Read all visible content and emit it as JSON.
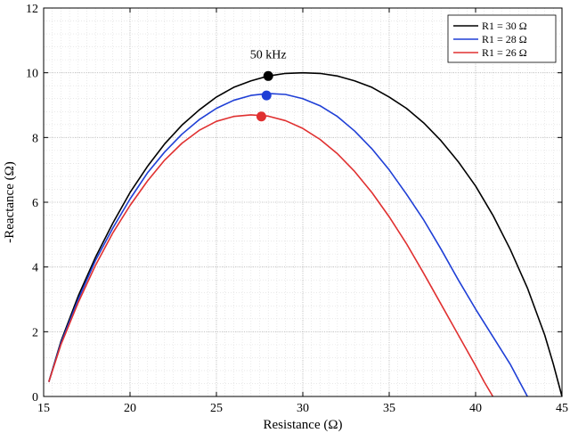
{
  "chart_data": {
    "type": "line",
    "title": "",
    "xlabel": "Resistance (Ω)",
    "ylabel": "-Reactance (Ω)",
    "xlim": [
      15,
      45
    ],
    "ylim": [
      0,
      12
    ],
    "x_ticks": [
      15,
      20,
      25,
      30,
      35,
      40,
      45
    ],
    "y_ticks": [
      0,
      2,
      4,
      6,
      8,
      10,
      12
    ],
    "grid": true,
    "legend_position": "top-right",
    "series": [
      {
        "name": "R1 = 30 Ω",
        "color": "#000000",
        "points": [
          [
            15.3,
            0.45
          ],
          [
            16,
            1.7
          ],
          [
            17,
            3.1
          ],
          [
            18,
            4.3
          ],
          [
            19,
            5.35
          ],
          [
            20,
            6.3
          ],
          [
            21,
            7.1
          ],
          [
            22,
            7.8
          ],
          [
            23,
            8.38
          ],
          [
            24,
            8.85
          ],
          [
            25,
            9.25
          ],
          [
            26,
            9.55
          ],
          [
            27,
            9.75
          ],
          [
            28,
            9.9
          ],
          [
            29,
            9.98
          ],
          [
            30,
            10.0
          ],
          [
            31,
            9.98
          ],
          [
            32,
            9.9
          ],
          [
            33,
            9.75
          ],
          [
            34,
            9.55
          ],
          [
            35,
            9.25
          ],
          [
            36,
            8.9
          ],
          [
            37,
            8.45
          ],
          [
            38,
            7.9
          ],
          [
            39,
            7.25
          ],
          [
            40,
            6.5
          ],
          [
            41,
            5.6
          ],
          [
            42,
            4.55
          ],
          [
            43,
            3.35
          ],
          [
            44,
            1.9
          ],
          [
            44.5,
            1.0
          ],
          [
            45,
            0.0
          ]
        ],
        "marker": [
          28.0,
          9.9
        ]
      },
      {
        "name": "R1 = 28 Ω",
        "color": "#1f3fd6",
        "points": [
          [
            15.3,
            0.45
          ],
          [
            16,
            1.65
          ],
          [
            17,
            3.0
          ],
          [
            18,
            4.2
          ],
          [
            19,
            5.2
          ],
          [
            20,
            6.1
          ],
          [
            21,
            6.9
          ],
          [
            22,
            7.55
          ],
          [
            23,
            8.1
          ],
          [
            24,
            8.55
          ],
          [
            25,
            8.9
          ],
          [
            26,
            9.15
          ],
          [
            27,
            9.3
          ],
          [
            28,
            9.36
          ],
          [
            29,
            9.33
          ],
          [
            30,
            9.2
          ],
          [
            31,
            8.98
          ],
          [
            32,
            8.65
          ],
          [
            33,
            8.2
          ],
          [
            34,
            7.65
          ],
          [
            35,
            7.0
          ],
          [
            36,
            6.25
          ],
          [
            37,
            5.45
          ],
          [
            38,
            4.55
          ],
          [
            39,
            3.6
          ],
          [
            40,
            2.7
          ],
          [
            41,
            1.85
          ],
          [
            42,
            1.0
          ],
          [
            42.6,
            0.4
          ],
          [
            43.0,
            0.0
          ]
        ],
        "marker": [
          27.9,
          9.3
        ]
      },
      {
        "name": "R1 = 26 Ω",
        "color": "#e03030",
        "points": [
          [
            15.3,
            0.45
          ],
          [
            16,
            1.6
          ],
          [
            17,
            2.9
          ],
          [
            18,
            4.05
          ],
          [
            19,
            5.05
          ],
          [
            20,
            5.9
          ],
          [
            21,
            6.65
          ],
          [
            22,
            7.3
          ],
          [
            23,
            7.82
          ],
          [
            24,
            8.22
          ],
          [
            25,
            8.5
          ],
          [
            26,
            8.65
          ],
          [
            27,
            8.7
          ],
          [
            28,
            8.66
          ],
          [
            29,
            8.52
          ],
          [
            30,
            8.28
          ],
          [
            31,
            7.94
          ],
          [
            32,
            7.5
          ],
          [
            33,
            6.95
          ],
          [
            34,
            6.3
          ],
          [
            35,
            5.55
          ],
          [
            36,
            4.72
          ],
          [
            37,
            3.8
          ],
          [
            38,
            2.85
          ],
          [
            39,
            1.9
          ],
          [
            40,
            0.95
          ],
          [
            40.5,
            0.45
          ],
          [
            41.0,
            0.0
          ]
        ],
        "marker": [
          27.6,
          8.65
        ]
      }
    ],
    "annotations": [
      {
        "text": "50 kHz",
        "x": 28.0,
        "y": 10.45
      }
    ]
  }
}
